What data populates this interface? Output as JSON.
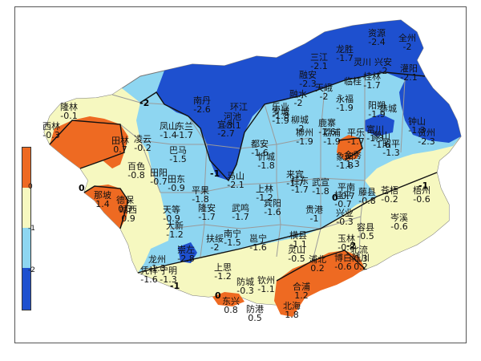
{
  "colors": {
    "dark_blue": "#1e50cf",
    "light_blue": "#8ed6f1",
    "pale_yellow": "#f6f8c0",
    "orange": "#ee6a22",
    "border": "#8a8a8a"
  },
  "legend": {
    "labels": [
      "0",
      "-1",
      "-2"
    ],
    "colors": [
      "#ee6a22",
      "#f6f8c0",
      "#8ed6f1",
      "#1e50cf"
    ]
  },
  "isolines": [
    "-2",
    "-1",
    "0",
    "0",
    "-1",
    "-2",
    "0",
    "-1"
  ],
  "stations": [
    {
      "name": "资源",
      "value": "-2.4"
    },
    {
      "name": "全州",
      "value": "-2"
    },
    {
      "name": "龙胜",
      "value": "-1.7"
    },
    {
      "name": "灵川",
      "value": ""
    },
    {
      "name": "兴安",
      "value": "-2"
    },
    {
      "name": "三江",
      "value": "-2.1"
    },
    {
      "name": "灌阳",
      "value": "-2.1"
    },
    {
      "name": "桂林",
      "value": "-1.7"
    },
    {
      "name": "融安",
      "value": "-2.3"
    },
    {
      "name": "临桂",
      "value": ""
    },
    {
      "name": "阳朔",
      "value": "-1.9"
    },
    {
      "name": "恭城",
      "value": ""
    },
    {
      "name": "永福",
      "value": "-1.9"
    },
    {
      "name": "融水",
      "value": "-2"
    },
    {
      "name": "乐业",
      "value": "-1.8"
    },
    {
      "name": "天峨",
      "value": "-2"
    },
    {
      "name": "南丹",
      "value": "-2.6"
    },
    {
      "name": "环江",
      "value": ""
    },
    {
      "name": "罗城",
      "value": "-1.9"
    },
    {
      "name": "柳城",
      "value": "-2"
    },
    {
      "name": "鹿寨",
      "value": "-1.6"
    },
    {
      "name": "荔浦",
      "value": "-1.9"
    },
    {
      "name": "平乐",
      "value": "-1.7"
    },
    {
      "name": "富川",
      "value": "-1.3"
    },
    {
      "name": "钟山",
      "value": "-1.3"
    },
    {
      "name": "贺州",
      "value": "-2.3"
    },
    {
      "name": "隆林",
      "value": "-0.1"
    },
    {
      "name": "西林",
      "value": "-0.3"
    },
    {
      "name": "凤山",
      "value": "-1.4"
    },
    {
      "name": "东兰",
      "value": "-1.7"
    },
    {
      "name": "河池",
      "value": "-3.1"
    },
    {
      "name": "宜州",
      "value": "-2.7"
    },
    {
      "name": "柳州",
      "value": "-1.9"
    },
    {
      "name": "忻城",
      "value": "-1.8"
    },
    {
      "name": "象州",
      "value": "-1.8"
    },
    {
      "name": "金秀",
      "value": "1.3"
    },
    {
      "name": "蒙山",
      "value": "-1.6"
    },
    {
      "name": "昭平",
      "value": "-1.3"
    },
    {
      "name": "田林",
      "value": "0.7"
    },
    {
      "name": "凌云",
      "value": "-0.2"
    },
    {
      "name": "巴马",
      "value": "-1.5"
    },
    {
      "name": "都安",
      "value": "-1.6"
    },
    {
      "name": "马山",
      "value": "-2.1"
    },
    {
      "name": "来宾",
      "value": "-1.7"
    },
    {
      "name": "武宣",
      "value": "-1.8"
    },
    {
      "name": "平南",
      "value": "-0.7"
    },
    {
      "name": "藤县",
      "value": "-0.8"
    },
    {
      "name": "苍梧",
      "value": "-0.2"
    },
    {
      "name": "梧州",
      "value": "-0.6"
    },
    {
      "name": "百色",
      "value": "-0.8"
    },
    {
      "name": "田阳",
      "value": "-0.7"
    },
    {
      "name": "田东",
      "value": "-0.9"
    },
    {
      "name": "平果",
      "value": "-1.8"
    },
    {
      "name": "上林",
      "value": "-1.2"
    },
    {
      "name": "宾阳",
      "value": "-1.6"
    },
    {
      "name": "贵港",
      "value": "-1"
    },
    {
      "name": "桂平",
      "value": "-0.7"
    },
    {
      "name": "岑溪",
      "value": "-0.6"
    },
    {
      "name": "那坡",
      "value": "1.4"
    },
    {
      "name": "德保",
      "value": "0.3"
    },
    {
      "name": "靖西",
      "value": "0.9"
    },
    {
      "name": "天等",
      "value": "-0.9"
    },
    {
      "name": "隆安",
      "value": "-1.7"
    },
    {
      "name": "武鸣",
      "value": "-1.7"
    },
    {
      "name": "大新",
      "value": "-1.2"
    },
    {
      "name": "南宁",
      "value": "-1.5"
    },
    {
      "name": "邕宁",
      "value": "-1.6"
    },
    {
      "name": "横县",
      "value": "-1.1"
    },
    {
      "name": "容县",
      "value": "-0.5"
    },
    {
      "name": "扶绥",
      "value": "-2"
    },
    {
      "name": "崇左",
      "value": "-2.8"
    },
    {
      "name": "灵山",
      "value": "-0.5"
    },
    {
      "name": "玉林",
      "value": "-0.8"
    },
    {
      "name": "北流",
      "value": "-0.3"
    },
    {
      "name": "龙州",
      "value": "-1.3"
    },
    {
      "name": "凭祥",
      "value": "-1.6"
    },
    {
      "name": "宁明",
      "value": "-1.3"
    },
    {
      "name": "上思",
      "value": "-1.2"
    },
    {
      "name": "浦北",
      "value": "0.2"
    },
    {
      "name": "博白",
      "value": "-0.6"
    },
    {
      "name": "陆川",
      "value": "0.2"
    },
    {
      "name": "防城",
      "value": "-0.3"
    },
    {
      "name": "钦州",
      "value": "-1.1"
    },
    {
      "name": "合浦",
      "value": "1.2"
    },
    {
      "name": "东兴",
      "value": "0.8"
    },
    {
      "name": "防港",
      "value": "0.5"
    },
    {
      "name": "北海",
      "value": "1.8"
    },
    {
      "name": "桂东",
      "value": "-1.7"
    },
    {
      "name": "兴业",
      "value": "-0.3"
    }
  ]
}
